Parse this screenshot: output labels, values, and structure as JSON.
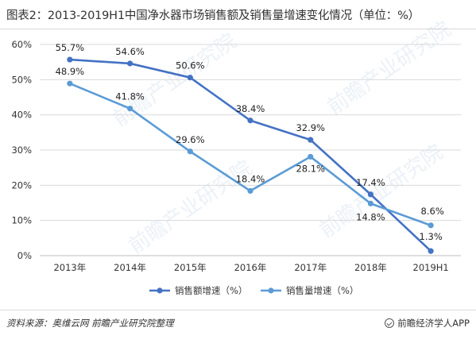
{
  "header": {
    "title": "图表2：2013-2019H1中国净水器市场销售额及销售量增速变化情况（单位：%）"
  },
  "footer": {
    "source": "资料来源：奥维云网  前瞻产业研究院整理",
    "brand": "前瞻经济学人APP"
  },
  "watermark": {
    "text": "前瞻产业研究院"
  },
  "colors": {
    "sales_amount": "#4472c4",
    "sales_volume": "#5b9bd5",
    "grid": "#d9d9d9",
    "axis_text": "#333333"
  },
  "chart_data": {
    "type": "line",
    "title": "2013-2019H1中国净水器市场销售额及销售量增速变化情况（单位：%）",
    "xlabel": "",
    "ylabel": "",
    "categories": [
      "2013年",
      "2014年",
      "2015年",
      "2016年",
      "2017年",
      "2018年",
      "2019H1"
    ],
    "ylim": [
      0,
      60
    ],
    "yticks": [
      0,
      10,
      20,
      30,
      40,
      50,
      60
    ],
    "ytick_labels": [
      "0%",
      "10%",
      "20%",
      "30%",
      "40%",
      "50%",
      "60%"
    ],
    "grid": true,
    "legend_position": "bottom",
    "series": [
      {
        "name": "销售额增速（%）",
        "values": [
          55.7,
          54.6,
          50.6,
          38.4,
          32.9,
          17.4,
          1.3
        ],
        "labels": [
          "55.7%",
          "54.6%",
          "50.6%",
          "38.4%",
          "32.9%",
          "17.4%",
          "1.3%"
        ]
      },
      {
        "name": "销售量增速（%）",
        "values": [
          48.9,
          41.8,
          29.6,
          18.4,
          28.1,
          14.8,
          8.6
        ],
        "labels": [
          "48.9%",
          "41.8%",
          "29.6%",
          "18.4%",
          "28.1%",
          "14.8%",
          "8.6%"
        ]
      }
    ]
  }
}
